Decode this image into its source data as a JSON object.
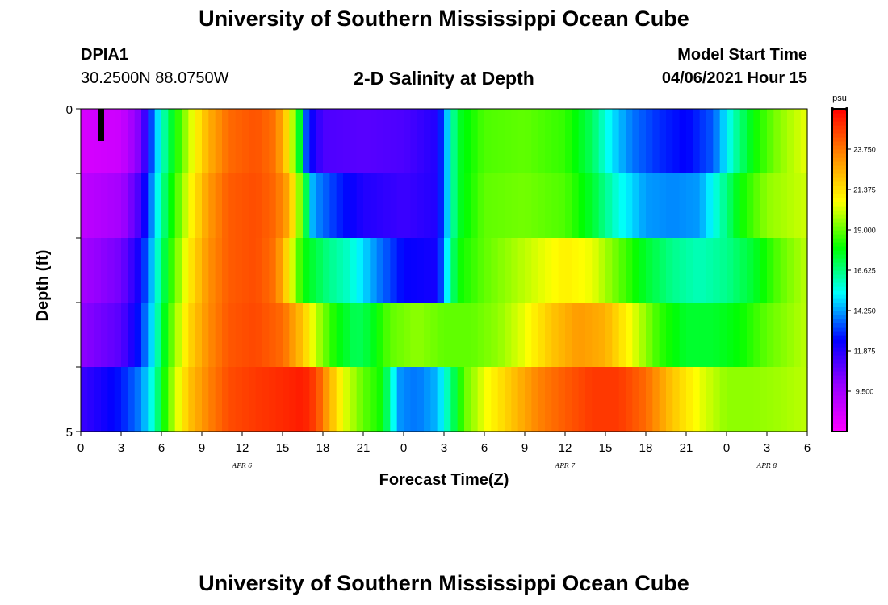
{
  "header": {
    "title": "University of Southern Mississippi Ocean Cube",
    "station": "DPIA1",
    "coords": "30.2500N  88.0750W",
    "subtitle": "2-D Salinity at Depth",
    "model_label": "Model Start Time",
    "model_date": "04/06/2021 Hour 15"
  },
  "footer": {
    "title": "University of Southern Mississippi Ocean Cube"
  },
  "chart_data": {
    "type": "heatmap",
    "title": "2-D Salinity at Depth",
    "xlabel": "Forecast Time(Z)",
    "ylabel": "Depth (ft)",
    "x_range_hours": [
      0,
      54
    ],
    "y_range": [
      0,
      5
    ],
    "y_tick_labels": [
      "0",
      "5"
    ],
    "x_tick_labels": [
      "0",
      "3",
      "6",
      "9",
      "12",
      "15",
      "18",
      "21",
      "0",
      "3",
      "6",
      "9",
      "12",
      "15",
      "18",
      "21",
      "0",
      "3",
      "6"
    ],
    "date_labels": [
      {
        "text": "APR 6",
        "hour": 12
      },
      {
        "text": "APR 7",
        "hour": 36
      },
      {
        "text": "APR 8",
        "hour": 51
      }
    ],
    "colorbar": {
      "unit": "psu",
      "min": 7.125,
      "max": 26.125,
      "tick_labels": [
        "23.750",
        "21.375",
        "19.000",
        "16.625",
        "14.250",
        "11.875",
        "9.500"
      ],
      "tick_values": [
        23.75,
        21.375,
        19.0,
        16.625,
        14.25,
        11.875,
        9.5
      ],
      "colors": [
        "#ff00ff",
        "#9900ff",
        "#0000ff",
        "#00ffff",
        "#00ff00",
        "#ffff00",
        "#ff8800",
        "#ff0000"
      ]
    },
    "marker": {
      "hour": 1.5,
      "depth_from": 0,
      "depth_to": 0.5
    },
    "depth_layers": [
      0.5,
      1.5,
      2.5,
      3.5,
      4.5
    ],
    "profiles": [
      {
        "depth": 0.5,
        "points": [
          [
            0,
            8.2
          ],
          [
            3,
            8.5
          ],
          [
            4.5,
            10.5
          ],
          [
            5.5,
            14.3
          ],
          [
            6.5,
            17.0
          ],
          [
            8,
            20.0
          ],
          [
            9.5,
            22.5
          ],
          [
            11,
            24.0
          ],
          [
            13,
            24.5
          ],
          [
            14.5,
            23.8
          ],
          [
            15.5,
            21.0
          ],
          [
            16.2,
            18.0
          ],
          [
            16.8,
            13.0
          ],
          [
            18,
            11.2
          ],
          [
            21,
            11.0
          ],
          [
            24,
            11.2
          ],
          [
            26.5,
            12.0
          ],
          [
            27.2,
            14.5
          ],
          [
            28,
            17.5
          ],
          [
            30,
            18.8
          ],
          [
            33,
            19.0
          ],
          [
            36,
            18.5
          ],
          [
            38,
            17.0
          ],
          [
            39.5,
            15.0
          ],
          [
            41,
            13.8
          ],
          [
            43,
            13.0
          ],
          [
            45,
            12.5
          ],
          [
            47,
            13.5
          ],
          [
            48.5,
            16.0
          ],
          [
            50,
            18.0
          ],
          [
            52,
            19.5
          ],
          [
            54,
            20.5
          ]
        ]
      },
      {
        "depth": 1.5,
        "points": [
          [
            0,
            8.8
          ],
          [
            3,
            9.5
          ],
          [
            4.5,
            11.5
          ],
          [
            5.5,
            14.8
          ],
          [
            6.5,
            17.5
          ],
          [
            8,
            20.5
          ],
          [
            9.5,
            23.0
          ],
          [
            11,
            24.3
          ],
          [
            13,
            24.6
          ],
          [
            14.5,
            24.0
          ],
          [
            15.5,
            22.5
          ],
          [
            16.5,
            18.5
          ],
          [
            17.3,
            14.2
          ],
          [
            19,
            13.0
          ],
          [
            21,
            12.0
          ],
          [
            24,
            11.5
          ],
          [
            26.5,
            12.0
          ],
          [
            27.2,
            14.5
          ],
          [
            28,
            17.5
          ],
          [
            30,
            19.0
          ],
          [
            33,
            19.2
          ],
          [
            36,
            18.8
          ],
          [
            38,
            17.5
          ],
          [
            40,
            15.5
          ],
          [
            42,
            14.2
          ],
          [
            44,
            14.0
          ],
          [
            46,
            14.2
          ],
          [
            47.5,
            16.0
          ],
          [
            49,
            18.0
          ],
          [
            51,
            19.5
          ],
          [
            54,
            20.2
          ]
        ]
      },
      {
        "depth": 2.5,
        "points": [
          [
            0,
            9.5
          ],
          [
            3,
            10.5
          ],
          [
            4.5,
            12.5
          ],
          [
            5.5,
            15.2
          ],
          [
            6.5,
            18.0
          ],
          [
            8,
            21.0
          ],
          [
            9.5,
            23.2
          ],
          [
            11,
            24.3
          ],
          [
            13,
            24.6
          ],
          [
            14.5,
            23.8
          ],
          [
            15.5,
            21.0
          ],
          [
            16.5,
            18.0
          ],
          [
            18.5,
            16.5
          ],
          [
            20,
            15.8
          ],
          [
            22,
            14.0
          ],
          [
            24,
            12.5
          ],
          [
            26.5,
            12.2
          ],
          [
            27.2,
            15.0
          ],
          [
            28,
            18.0
          ],
          [
            30,
            19.0
          ],
          [
            33,
            20.0
          ],
          [
            36,
            21.0
          ],
          [
            38,
            20.5
          ],
          [
            40,
            19.0
          ],
          [
            42,
            17.5
          ],
          [
            44,
            16.5
          ],
          [
            46,
            16.0
          ],
          [
            48,
            16.5
          ],
          [
            50,
            17.5
          ],
          [
            52,
            19.0
          ],
          [
            54,
            20.0
          ]
        ]
      },
      {
        "depth": 3.5,
        "points": [
          [
            0,
            10.0
          ],
          [
            3,
            11.0
          ],
          [
            4.5,
            13.0
          ],
          [
            5.5,
            15.5
          ],
          [
            6.5,
            18.5
          ],
          [
            8,
            21.5
          ],
          [
            9.5,
            23.3
          ],
          [
            11,
            24.4
          ],
          [
            13,
            24.7
          ],
          [
            15,
            24.0
          ],
          [
            16.5,
            22.0
          ],
          [
            17.5,
            20.0
          ],
          [
            19,
            18.0
          ],
          [
            20.5,
            17.0
          ],
          [
            21.5,
            17.5
          ],
          [
            23,
            19.0
          ],
          [
            25,
            19.5
          ],
          [
            27,
            19.0
          ],
          [
            29,
            19.0
          ],
          [
            31,
            19.5
          ],
          [
            33,
            20.5
          ],
          [
            35,
            22.0
          ],
          [
            37,
            23.0
          ],
          [
            39,
            22.5
          ],
          [
            41,
            20.5
          ],
          [
            43,
            18.5
          ],
          [
            45,
            17.5
          ],
          [
            47,
            17.5
          ],
          [
            49,
            18.0
          ],
          [
            51,
            19.0
          ],
          [
            54,
            20.0
          ]
        ]
      },
      {
        "depth": 4.5,
        "points": [
          [
            0,
            11.5
          ],
          [
            3,
            12.8
          ],
          [
            4.5,
            14.0
          ],
          [
            5.5,
            16.0
          ],
          [
            6.5,
            19.0
          ],
          [
            8,
            22.0
          ],
          [
            9.5,
            23.5
          ],
          [
            11,
            24.6
          ],
          [
            13,
            25.0
          ],
          [
            15,
            25.3
          ],
          [
            16.5,
            25.6
          ],
          [
            17.5,
            24.8
          ],
          [
            18.5,
            22.5
          ],
          [
            19.5,
            20.5
          ],
          [
            21,
            19.0
          ],
          [
            22.5,
            18.0
          ],
          [
            23,
            16.0
          ],
          [
            23.8,
            14.0
          ],
          [
            25,
            13.8
          ],
          [
            26.5,
            14.5
          ],
          [
            27.5,
            16.5
          ],
          [
            28.5,
            19.0
          ],
          [
            30,
            20.5
          ],
          [
            32,
            22.0
          ],
          [
            34,
            23.5
          ],
          [
            36,
            24.3
          ],
          [
            38,
            25.0
          ],
          [
            40,
            25.0
          ],
          [
            42,
            24.0
          ],
          [
            44,
            22.0
          ],
          [
            46,
            20.5
          ],
          [
            48,
            19.5
          ],
          [
            50,
            19.5
          ],
          [
            52,
            19.7
          ],
          [
            54,
            20.0
          ]
        ]
      }
    ]
  }
}
